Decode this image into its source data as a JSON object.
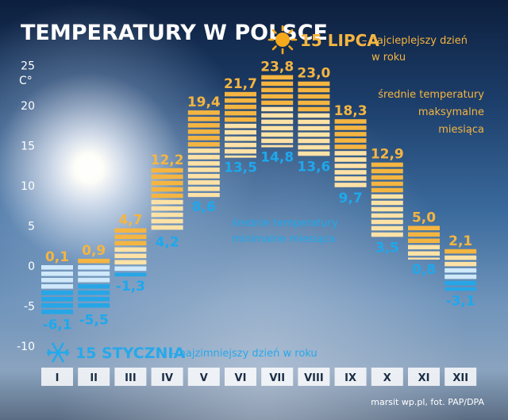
{
  "title": "TEMPERATURY W POLSCE",
  "hottest": {
    "date": "15 LIPCA",
    "text_line1": "– najcieplejszy dzień",
    "text_line2": "w roku",
    "icon": "sun-icon"
  },
  "coldest": {
    "date": "15 STYCZNIA",
    "text": "– najzimniejszy dzień w roku",
    "icon": "snowflake-icon"
  },
  "max_label": [
    "średnie temperatury",
    "maksymalne",
    "miesiąca"
  ],
  "min_label": [
    "średnie temperatury",
    "minimalne miesiąca"
  ],
  "credit": "marsit wp.pl, fot. PAP/DPA",
  "colors": {
    "max": "#f5b541",
    "max_light": "#ffe2a6",
    "min": "#26a6e6",
    "min_light": "#cfe9fa",
    "axis_label": "#ffffff",
    "max_text": "#f5b541",
    "min_text": "#1ea8ec"
  },
  "chart_data": {
    "type": "bar",
    "title": "TEMPERATURY W POLSCE",
    "ylabel": "C°",
    "ylim": [
      -10,
      25
    ],
    "yticks": [
      25,
      20,
      15,
      10,
      5,
      0,
      -5,
      -10
    ],
    "categories": [
      "I",
      "II",
      "III",
      "IV",
      "V",
      "VI",
      "VII",
      "VIII",
      "IX",
      "X",
      "XI",
      "XII"
    ],
    "series": [
      {
        "name": "średnie temperatury maksymalne miesiąca",
        "values": [
          0.1,
          0.9,
          4.7,
          12.2,
          19.4,
          21.7,
          23.8,
          23.0,
          18.3,
          12.9,
          5.0,
          2.1
        ],
        "labels": [
          "0,1",
          "0,9",
          "4,7",
          "12,2",
          "19,4",
          "21,7",
          "23,8",
          "23,0",
          "18,3",
          "12,9",
          "5,0",
          "2,1"
        ]
      },
      {
        "name": "średnie temperatury minimalne miesiąca",
        "values": [
          -6.1,
          -5.5,
          -1.3,
          4.2,
          8.6,
          13.5,
          14.8,
          13.6,
          9.7,
          3.5,
          0.8,
          -3.1
        ],
        "labels": [
          "-6,1",
          "-5,5",
          "-1,3",
          "4,2",
          "8,6",
          "13,5",
          "14,8",
          "13,6",
          "9,7",
          "3,5",
          "0,8",
          "-3,1"
        ]
      }
    ]
  }
}
